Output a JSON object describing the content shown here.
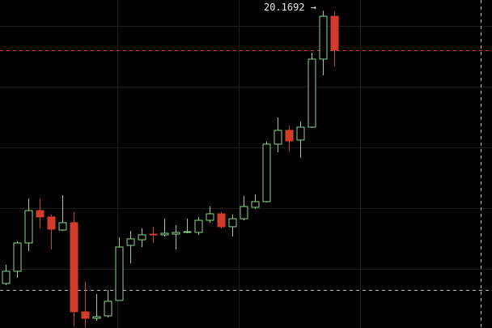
{
  "chart_data": {
    "type": "candlestick",
    "annotation": "20.1692 →",
    "ylim": [
      17.2,
      20.27
    ],
    "up_color": "#8fd48f",
    "down_color": "#d23c2c",
    "open": [
      17.617,
      17.731,
      17.996,
      18.299,
      18.239,
      18.117,
      18.186,
      17.352,
      17.291,
      17.314,
      17.458,
      17.973,
      18.026,
      18.079,
      18.072,
      18.079,
      18.095,
      18.095,
      18.208,
      18.269,
      18.148,
      18.223,
      18.33,
      18.383,
      18.921,
      19.05,
      18.959,
      19.08,
      19.717,
      20.118
    ],
    "high": [
      17.791,
      18.011,
      18.413,
      18.413,
      18.261,
      18.443,
      18.284,
      17.632,
      17.518,
      17.556,
      18.049,
      18.11,
      18.132,
      18.148,
      18.223,
      18.163,
      18.223,
      18.239,
      18.337,
      18.284,
      18.261,
      18.436,
      18.451,
      18.944,
      19.171,
      19.095,
      19.133,
      19.777,
      20.1692,
      20.16
    ],
    "low": [
      17.602,
      17.67,
      17.92,
      18.132,
      17.935,
      18.11,
      17.215,
      17.205,
      17.268,
      17.299,
      17.456,
      17.807,
      17.958,
      17.996,
      18.057,
      17.935,
      18.087,
      18.072,
      18.186,
      18.132,
      18.057,
      18.208,
      18.314,
      18.375,
      18.845,
      18.852,
      18.792,
      19.072,
      19.565,
      19.648
    ],
    "close": [
      17.731,
      17.996,
      18.299,
      18.239,
      18.125,
      18.186,
      17.352,
      17.291,
      17.306,
      17.45,
      17.958,
      18.034,
      18.072,
      18.072,
      18.087,
      18.095,
      18.102,
      18.208,
      18.269,
      18.148,
      18.223,
      18.337,
      18.383,
      18.921,
      19.05,
      18.951,
      19.08,
      19.717,
      20.118,
      19.8
    ]
  }
}
